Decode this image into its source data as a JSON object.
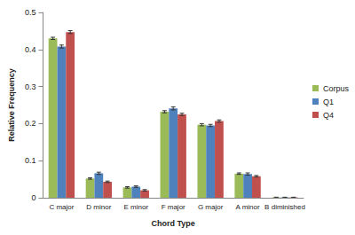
{
  "chart_data": {
    "type": "bar",
    "x_label": "Chord Type",
    "y_label": "Relative Frequency",
    "categories": [
      "C major",
      "D minor",
      "E minor",
      "F major",
      "G major",
      "A minor",
      "B diminished"
    ],
    "series": [
      {
        "name": "Corpus",
        "color": "#9BBB59",
        "values": [
          0.43,
          0.052,
          0.028,
          0.232,
          0.197,
          0.065,
          0.001
        ],
        "errors": [
          0.003,
          0.002,
          0.002,
          0.003,
          0.003,
          0.002,
          0.0005
        ]
      },
      {
        "name": "Q1",
        "color": "#4F81BD",
        "values": [
          0.408,
          0.066,
          0.03,
          0.241,
          0.195,
          0.064,
          0.001
        ],
        "errors": [
          0.004,
          0.003,
          0.002,
          0.004,
          0.003,
          0.003,
          0.0005
        ]
      },
      {
        "name": "Q4",
        "color": "#C0504D",
        "values": [
          0.447,
          0.043,
          0.02,
          0.225,
          0.207,
          0.058,
          0.001
        ],
        "errors": [
          0.004,
          0.002,
          0.002,
          0.003,
          0.003,
          0.002,
          0.0005
        ]
      }
    ],
    "ylim": [
      0,
      0.5
    ],
    "yticks": [
      0,
      0.1,
      0.2,
      0.3,
      0.4,
      0.5
    ],
    "grid": false,
    "legend": "right"
  }
}
